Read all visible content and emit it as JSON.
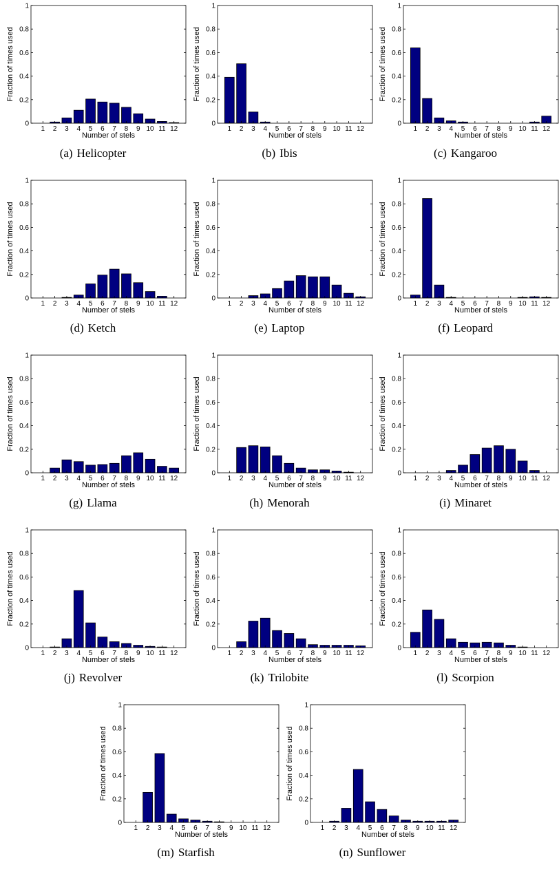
{
  "chart_data": [
    {
      "type": "bar",
      "letter": "(a)",
      "caption": "Helicopter",
      "xlabel": "Number of stels",
      "ylabel": "Fraction of times used",
      "ylim": [
        0,
        1
      ],
      "yticks": [
        "0",
        "0.2",
        "0.4",
        "0.6",
        "0.8",
        "1"
      ],
      "categories": [
        "1",
        "2",
        "3",
        "4",
        "5",
        "6",
        "7",
        "8",
        "9",
        "10",
        "11",
        "12"
      ],
      "values": [
        0,
        0.01,
        0.045,
        0.11,
        0.205,
        0.18,
        0.17,
        0.135,
        0.08,
        0.035,
        0.015,
        0.005
      ]
    },
    {
      "type": "bar",
      "letter": "(b)",
      "caption": "Ibis",
      "xlabel": "Number of stels",
      "ylabel": "Fraction of times used",
      "ylim": [
        0,
        1
      ],
      "yticks": [
        "0",
        "0.2",
        "0.4",
        "0.6",
        "0.8",
        "1"
      ],
      "categories": [
        "1",
        "2",
        "3",
        "4",
        "5",
        "6",
        "7",
        "8",
        "9",
        "10",
        "11",
        "12"
      ],
      "values": [
        0.39,
        0.505,
        0.095,
        0.01,
        0,
        0,
        0,
        0,
        0,
        0,
        0,
        0
      ]
    },
    {
      "type": "bar",
      "letter": "(c)",
      "caption": "Kangaroo",
      "xlabel": "Number of stels",
      "ylabel": "Fraction of times used",
      "ylim": [
        0,
        1
      ],
      "yticks": [
        "0",
        "0.2",
        "0.4",
        "0.6",
        "0.8",
        "1"
      ],
      "categories": [
        "1",
        "2",
        "3",
        "4",
        "5",
        "6",
        "7",
        "8",
        "9",
        "10",
        "11",
        "12"
      ],
      "values": [
        0.64,
        0.21,
        0.045,
        0.02,
        0.01,
        0,
        0,
        0,
        0,
        0,
        0.01,
        0.06
      ]
    },
    {
      "type": "bar",
      "letter": "(d)",
      "caption": "Ketch",
      "xlabel": "Number of stels",
      "ylabel": "Fraction of times used",
      "ylim": [
        0,
        1
      ],
      "yticks": [
        "0",
        "0.2",
        "0.4",
        "0.6",
        "0.8",
        "1"
      ],
      "categories": [
        "1",
        "2",
        "3",
        "4",
        "5",
        "6",
        "7",
        "8",
        "9",
        "10",
        "11",
        "12"
      ],
      "values": [
        0,
        0,
        0.005,
        0.025,
        0.12,
        0.195,
        0.245,
        0.205,
        0.13,
        0.055,
        0.015,
        0
      ]
    },
    {
      "type": "bar",
      "letter": "(e)",
      "caption": "Laptop",
      "xlabel": "Number of stels",
      "ylabel": "Fraction of times used",
      "ylim": [
        0,
        1
      ],
      "yticks": [
        "0",
        "0.2",
        "0.4",
        "0.6",
        "0.8",
        "1"
      ],
      "categories": [
        "1",
        "2",
        "3",
        "4",
        "5",
        "6",
        "7",
        "8",
        "9",
        "10",
        "11",
        "12"
      ],
      "values": [
        0,
        0,
        0.02,
        0.035,
        0.08,
        0.145,
        0.19,
        0.18,
        0.18,
        0.11,
        0.04,
        0.01
      ]
    },
    {
      "type": "bar",
      "letter": "(f)",
      "caption": "Leopard",
      "xlabel": "Number of stels",
      "ylabel": "Fraction of times used",
      "ylim": [
        0,
        1
      ],
      "yticks": [
        "0",
        "0.2",
        "0.4",
        "0.6",
        "0.8",
        "1"
      ],
      "categories": [
        "1",
        "2",
        "3",
        "4",
        "5",
        "6",
        "7",
        "8",
        "9",
        "10",
        "11",
        "12"
      ],
      "values": [
        0.025,
        0.845,
        0.11,
        0.005,
        0,
        0,
        0,
        0,
        0,
        0.005,
        0.01,
        0.005
      ]
    },
    {
      "type": "bar",
      "letter": "(g)",
      "caption": "Llama",
      "xlabel": "Number of stels",
      "ylabel": "Fraction of times used",
      "ylim": [
        0,
        1
      ],
      "yticks": [
        "0",
        "0.2",
        "0.4",
        "0.6",
        "0.8",
        "1"
      ],
      "categories": [
        "1",
        "2",
        "3",
        "4",
        "5",
        "6",
        "7",
        "8",
        "9",
        "10",
        "11",
        "12"
      ],
      "values": [
        0,
        0.04,
        0.11,
        0.095,
        0.065,
        0.07,
        0.08,
        0.145,
        0.17,
        0.115,
        0.055,
        0.04
      ]
    },
    {
      "type": "bar",
      "letter": "(h)",
      "caption": "Menorah",
      "xlabel": "Number of stels",
      "ylabel": "Fraction of times used",
      "ylim": [
        0,
        1
      ],
      "yticks": [
        "0",
        "0.2",
        "0.4",
        "0.6",
        "0.8",
        "1"
      ],
      "categories": [
        "1",
        "2",
        "3",
        "4",
        "5",
        "6",
        "7",
        "8",
        "9",
        "10",
        "11",
        "12"
      ],
      "values": [
        0,
        0.215,
        0.23,
        0.22,
        0.145,
        0.08,
        0.04,
        0.025,
        0.025,
        0.015,
        0.005,
        0
      ]
    },
    {
      "type": "bar",
      "letter": "(i)",
      "caption": "Minaret",
      "xlabel": "Number of stels",
      "ylabel": "Fraction of times used",
      "ylim": [
        0,
        1
      ],
      "yticks": [
        "0",
        "0.2",
        "0.4",
        "0.6",
        "0.8",
        "1"
      ],
      "categories": [
        "1",
        "2",
        "3",
        "4",
        "5",
        "6",
        "7",
        "8",
        "9",
        "10",
        "11",
        "12"
      ],
      "values": [
        0,
        0,
        0,
        0.02,
        0.065,
        0.155,
        0.21,
        0.23,
        0.2,
        0.1,
        0.02,
        0
      ]
    },
    {
      "type": "bar",
      "letter": "(j)",
      "caption": "Revolver",
      "xlabel": "Number of stels",
      "ylabel": "Fraction of times used",
      "ylim": [
        0,
        1
      ],
      "yticks": [
        "0",
        "0.2",
        "0.4",
        "0.6",
        "0.8",
        "1"
      ],
      "categories": [
        "1",
        "2",
        "3",
        "4",
        "5",
        "6",
        "7",
        "8",
        "9",
        "10",
        "11",
        "12"
      ],
      "values": [
        0,
        0.005,
        0.075,
        0.485,
        0.21,
        0.09,
        0.05,
        0.035,
        0.02,
        0.01,
        0.005,
        0
      ]
    },
    {
      "type": "bar",
      "letter": "(k)",
      "caption": "Trilobite",
      "xlabel": "Number of stels",
      "ylabel": "Fraction of times used",
      "ylim": [
        0,
        1
      ],
      "yticks": [
        "0",
        "0.2",
        "0.4",
        "0.6",
        "0.8",
        "1"
      ],
      "categories": [
        "1",
        "2",
        "3",
        "4",
        "5",
        "6",
        "7",
        "8",
        "9",
        "10",
        "11",
        "12"
      ],
      "values": [
        0,
        0.05,
        0.225,
        0.25,
        0.145,
        0.12,
        0.075,
        0.025,
        0.02,
        0.02,
        0.02,
        0.015
      ]
    },
    {
      "type": "bar",
      "letter": "(l)",
      "caption": "Scorpion",
      "xlabel": "Number of stels",
      "ylabel": "Fraction of times used",
      "ylim": [
        0,
        1
      ],
      "yticks": [
        "0",
        "0.2",
        "0.4",
        "0.6",
        "0.8",
        "1"
      ],
      "categories": [
        "1",
        "2",
        "3",
        "4",
        "5",
        "6",
        "7",
        "8",
        "9",
        "10",
        "11",
        "12"
      ],
      "values": [
        0.13,
        0.32,
        0.24,
        0.075,
        0.045,
        0.04,
        0.045,
        0.04,
        0.02,
        0.005,
        0,
        0
      ]
    },
    {
      "type": "bar",
      "letter": "(m)",
      "caption": "Starfish",
      "xlabel": "Number of stels",
      "ylabel": "Fraction of times used",
      "ylim": [
        0,
        1
      ],
      "yticks": [
        "0",
        "0.2",
        "0.4",
        "0.6",
        "0.8",
        "1"
      ],
      "categories": [
        "1",
        "2",
        "3",
        "4",
        "5",
        "6",
        "7",
        "8",
        "9",
        "10",
        "11",
        "12"
      ],
      "values": [
        0,
        0.255,
        0.585,
        0.07,
        0.03,
        0.02,
        0.01,
        0.005,
        0,
        0,
        0,
        0
      ]
    },
    {
      "type": "bar",
      "letter": "(n)",
      "caption": "Sunflower",
      "xlabel": "Number of stels",
      "ylabel": "Fraction of times used",
      "ylim": [
        0,
        1
      ],
      "yticks": [
        "0",
        "0.2",
        "0.4",
        "0.6",
        "0.8",
        "1"
      ],
      "categories": [
        "1",
        "2",
        "3",
        "4",
        "5",
        "6",
        "7",
        "8",
        "9",
        "10",
        "11",
        "12"
      ],
      "values": [
        0,
        0.01,
        0.12,
        0.45,
        0.175,
        0.11,
        0.055,
        0.02,
        0.01,
        0.01,
        0.01,
        0.02
      ]
    }
  ],
  "colors": {
    "bar_fill": "#000080",
    "bar_stroke": "#000000",
    "axis": "#000000"
  }
}
